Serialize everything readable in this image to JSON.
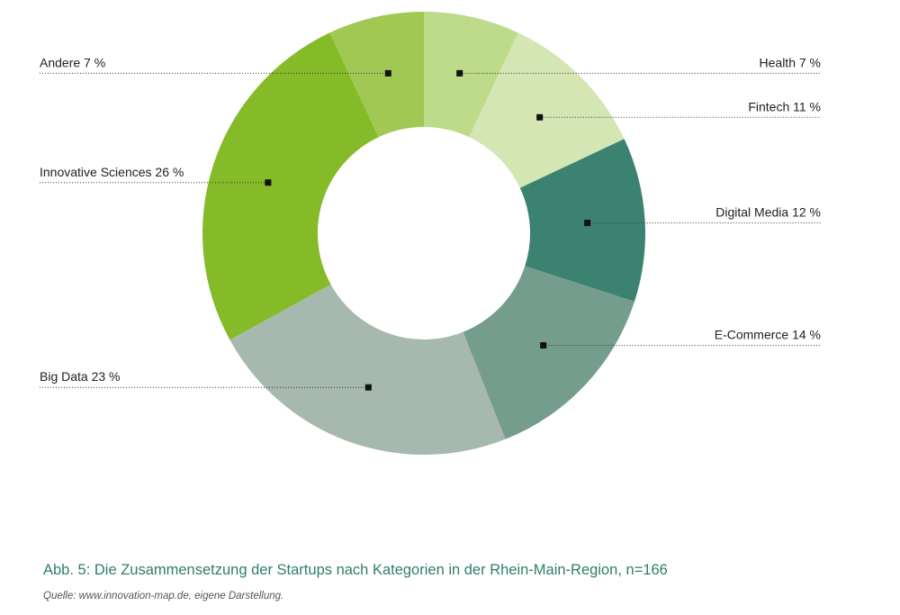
{
  "chart_data": {
    "type": "pie",
    "donut": true,
    "n": 166,
    "slices": [
      {
        "label": "Health",
        "value": 7,
        "label_text": "Health 7 %",
        "color": "#bedb8c",
        "side": "right"
      },
      {
        "label": "Fintech",
        "value": 11,
        "label_text": "Fintech 11 %",
        "color": "#d4e6b4",
        "side": "right"
      },
      {
        "label": "Digital Media",
        "value": 12,
        "label_text": "Digital Media 12 %",
        "color": "#3b8270",
        "side": "right"
      },
      {
        "label": "E-Commerce",
        "value": 14,
        "label_text": "E-Commerce 14 %",
        "color": "#759d8d",
        "side": "right"
      },
      {
        "label": "Big Data",
        "value": 23,
        "label_text": "Big Data 23 %",
        "color": "#a7b9ae",
        "side": "left"
      },
      {
        "label": "Innovative Sciences",
        "value": 26,
        "label_text": "Innovative Sciences 26 %",
        "color": "#85bb29",
        "side": "left"
      },
      {
        "label": "Andere",
        "value": 7,
        "label_text": "Andere 7 %",
        "color": "#a0c853",
        "side": "left"
      }
    ]
  },
  "caption": {
    "title": "Abb. 5: Die Zusammensetzung der Startups nach Kategorien in der Rhein-Main-Region, n=166",
    "source": "Quelle: www.innovation-map.de, eigene Darstellung."
  }
}
